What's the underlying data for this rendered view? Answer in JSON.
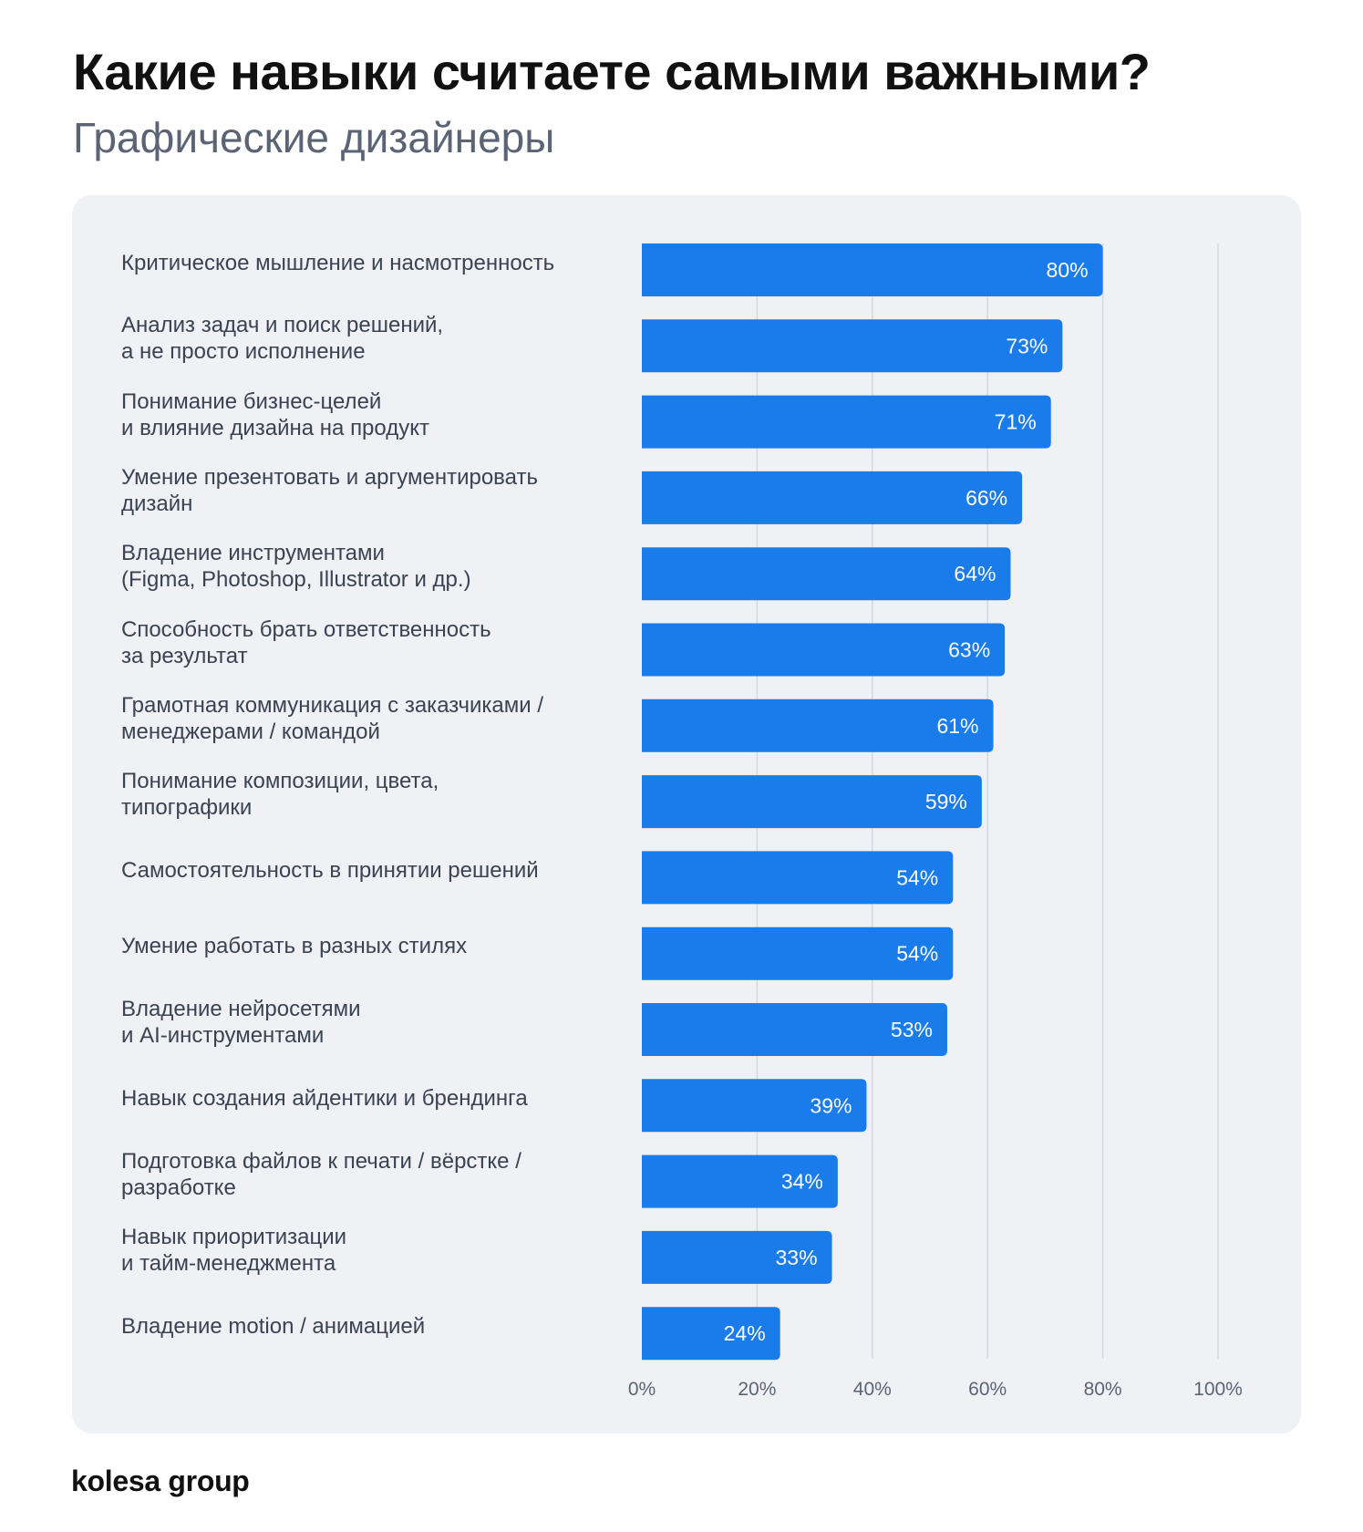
{
  "header": {
    "title": "Какие навыки считаете самыми важными?",
    "subtitle": "Графические дизайнеры"
  },
  "footer": {
    "brand": "kolesa group"
  },
  "colors": {
    "bar": "#1a7ceb",
    "grid": "#d3d8e0",
    "panel": "#eff1f5",
    "label": "#3b4252",
    "tick": "#5b6475"
  },
  "chart_data": {
    "type": "bar",
    "orientation": "horizontal",
    "title": "Какие навыки считаете самыми важными?",
    "subtitle": "Графические дизайнеры",
    "xlabel": "",
    "ylabel": "",
    "xlim": [
      0,
      100
    ],
    "x_ticks": [
      "0%",
      "20%",
      "40%",
      "60%",
      "80%",
      "100%"
    ],
    "grid": true,
    "categories": [
      [
        "Критическое мышление и насмотренность"
      ],
      [
        "Анализ задач и поиск решений,",
        "а не просто исполнение"
      ],
      [
        "Понимание бизнес-целей",
        "и влияние дизайна на продукт"
      ],
      [
        "Умение презентовать и аргументировать",
        "дизайн"
      ],
      [
        "Владение инструментами",
        "(Figma, Photoshop, Illustrator и др.)"
      ],
      [
        "Способность брать ответственность",
        "за результат"
      ],
      [
        "Грамотная коммуникация с заказчиками /",
        "менеджерами / командой"
      ],
      [
        "Понимание композиции, цвета,",
        "типографики"
      ],
      [
        "Самостоятельность в принятии решений"
      ],
      [
        "Умение работать в разных стилях"
      ],
      [
        "Владение нейросетями",
        "и AI-инструментами"
      ],
      [
        "Навык создания айдентики и брендинга"
      ],
      [
        "Подготовка файлов к печати / вёрстке /",
        "разработке"
      ],
      [
        "Навык приоритизации",
        "и тайм-менеджмента"
      ],
      [
        "Владение motion / анимацией"
      ]
    ],
    "values": [
      80,
      73,
      71,
      66,
      64,
      63,
      61,
      59,
      54,
      54,
      53,
      39,
      34,
      33,
      24
    ],
    "value_labels": [
      "80%",
      "73%",
      "71%",
      "66%",
      "64%",
      "63%",
      "61%",
      "59%",
      "54%",
      "54%",
      "53%",
      "39%",
      "34%",
      "33%",
      "24%"
    ]
  }
}
